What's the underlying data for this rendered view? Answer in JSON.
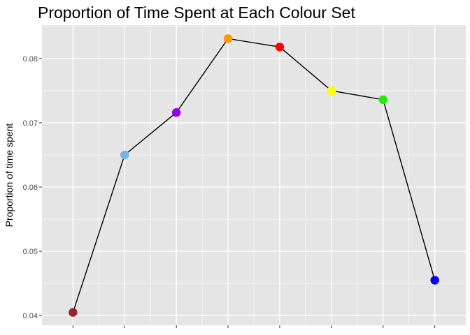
{
  "chart_data": {
    "type": "line",
    "title": "Proportion of Time Spent at Each Colour Set",
    "xlabel": "",
    "ylabel": "Proportion of time spent",
    "grid": true,
    "ylim": [
      0.0385,
      0.0852
    ],
    "yticks": [
      0.04,
      0.05,
      0.06,
      0.07,
      0.08
    ],
    "ytick_labels": [
      "0.04",
      "0.05",
      "0.06",
      "0.07",
      "0.08"
    ],
    "x": [
      1,
      2,
      3,
      4,
      5,
      6,
      7,
      8
    ],
    "values": [
      0.0405,
      0.065,
      0.0716,
      0.0831,
      0.0818,
      0.075,
      0.0736,
      0.0455
    ],
    "point_colors": [
      "#9b2226",
      "#74b3e8",
      "#9400f0",
      "#ff9900",
      "#ff0000",
      "#ffff00",
      "#22ee00",
      "#0000ff"
    ],
    "line_color": "#000000",
    "panel_background": "#e5e5e5",
    "grid_color": "#ffffff"
  }
}
